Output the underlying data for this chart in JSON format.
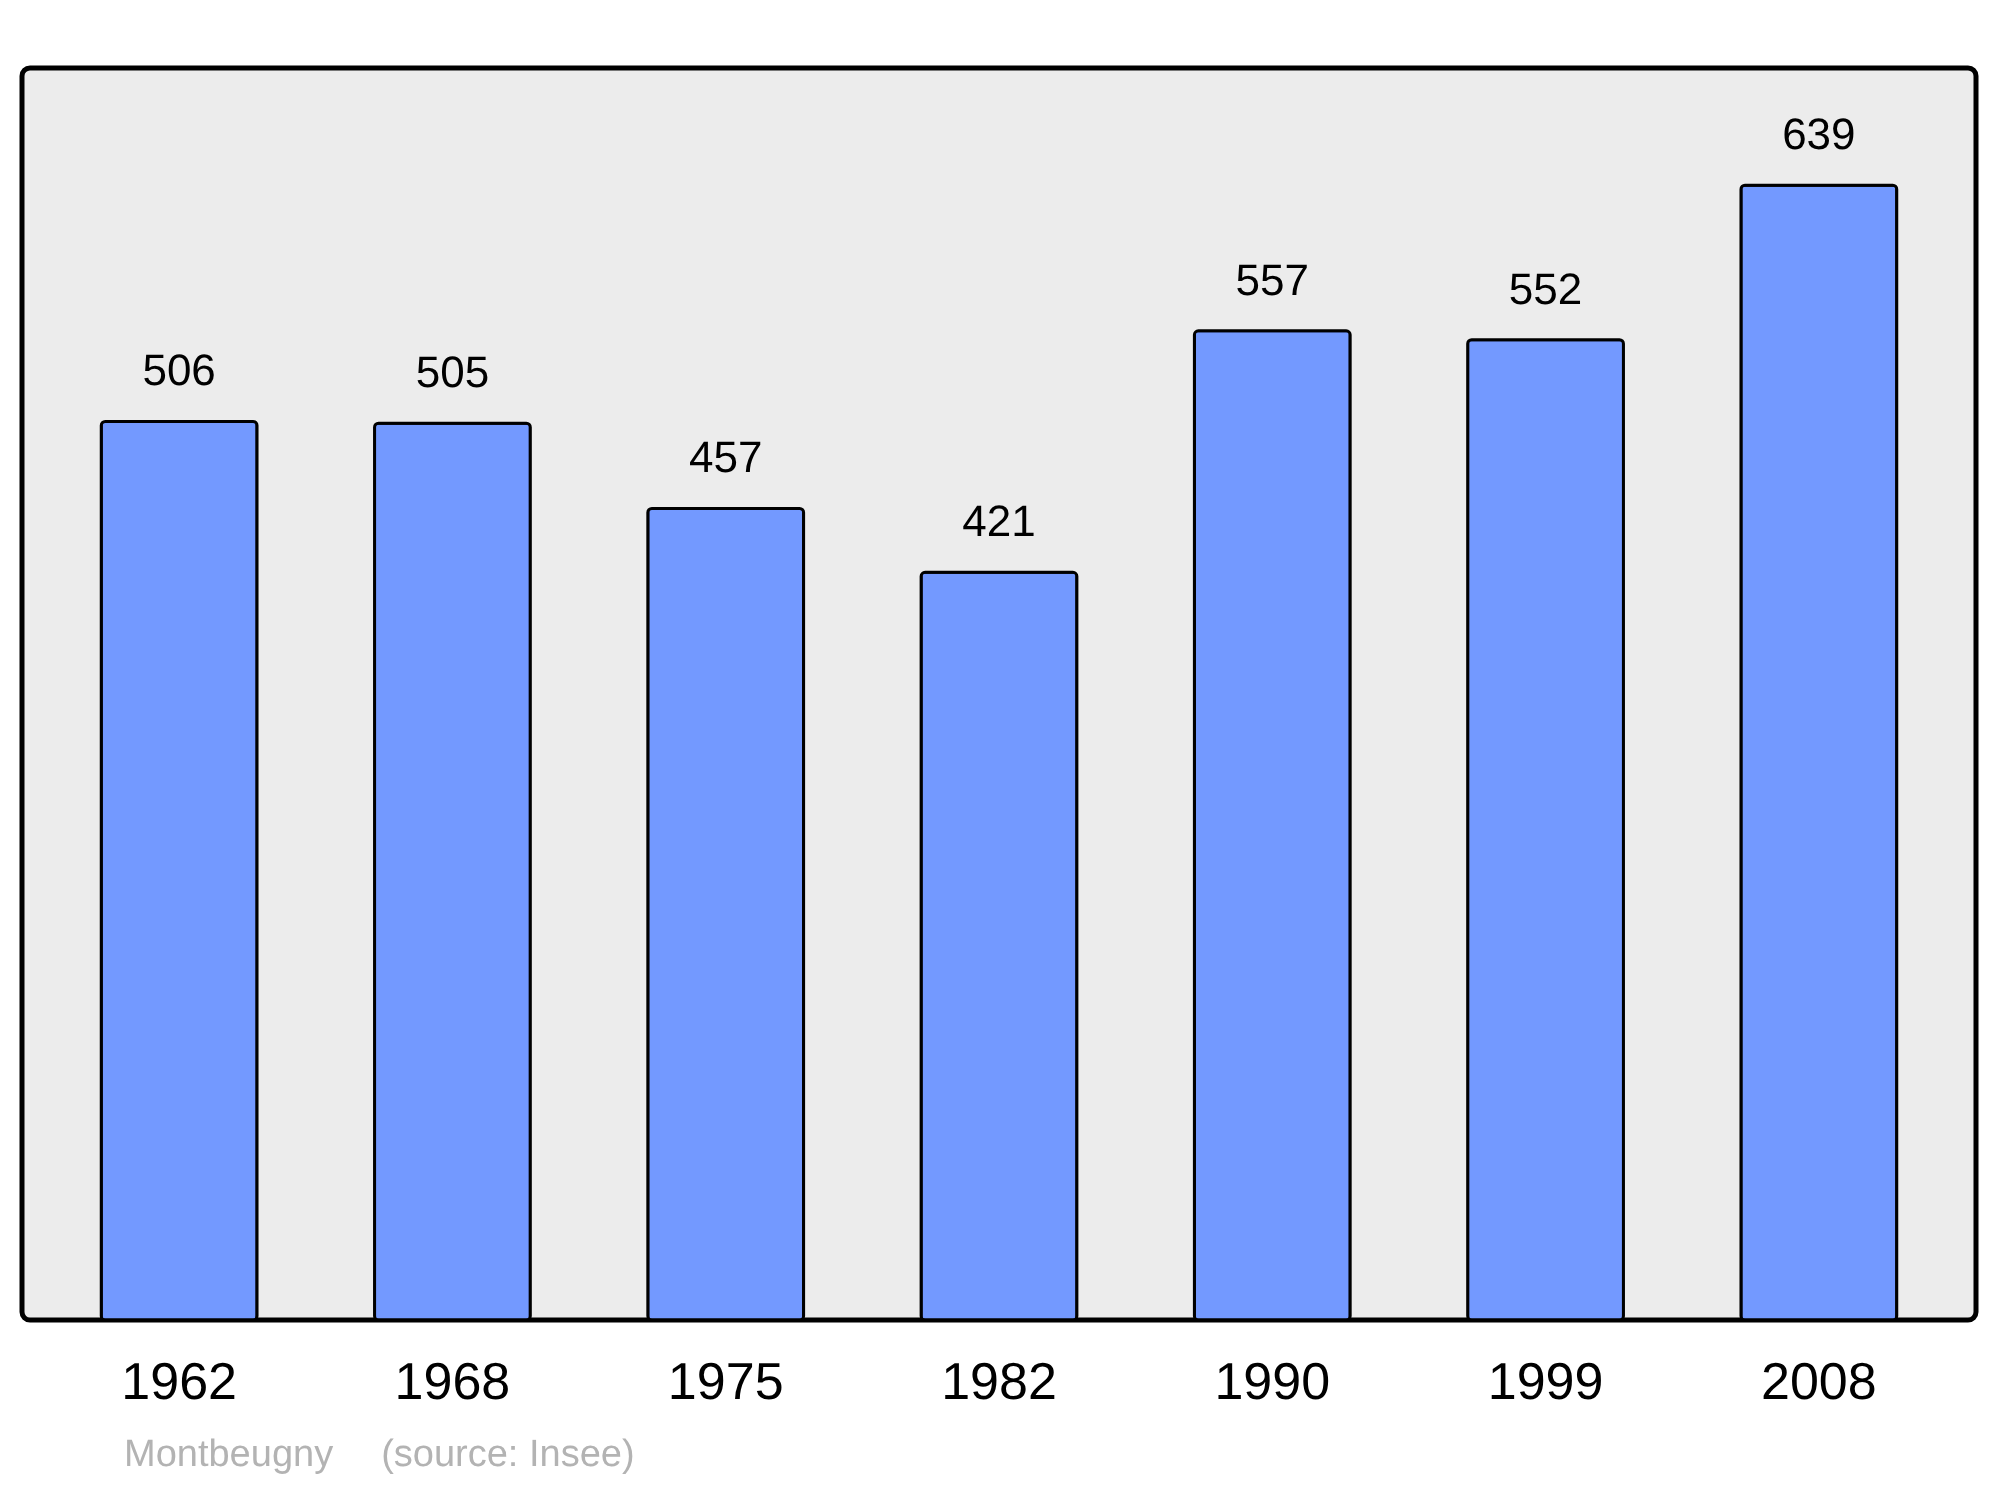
{
  "chart_data": {
    "type": "bar",
    "categories": [
      "1962",
      "1968",
      "1975",
      "1982",
      "1990",
      "1999",
      "2008"
    ],
    "values": [
      506,
      505,
      457,
      421,
      557,
      552,
      639
    ],
    "color": "#7399ff",
    "ylim": [
      0,
      705
    ],
    "data_labels": true,
    "tick_labels": "x",
    "annotations": [
      "Montbeugny",
      "(source: Insee)"
    ]
  }
}
